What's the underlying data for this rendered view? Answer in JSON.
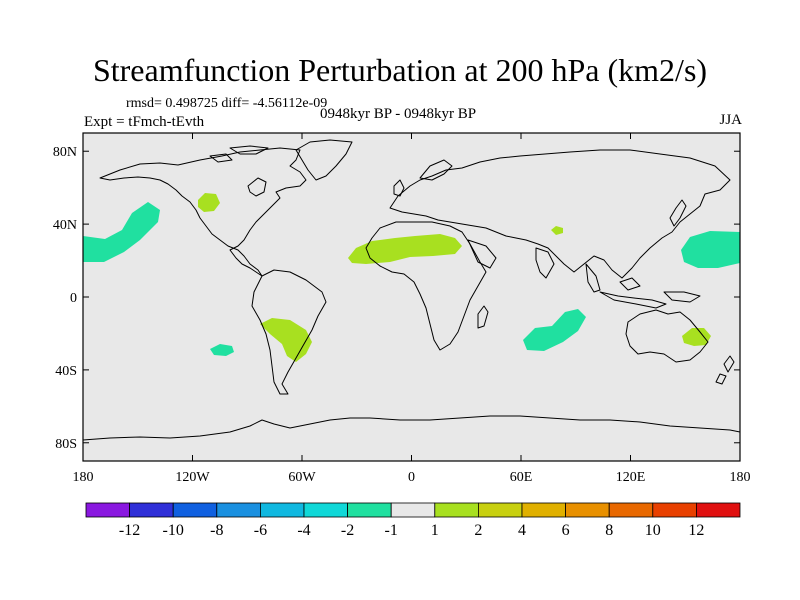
{
  "title": "Streamfunction Perturbation at 200 hPa (km2/s)",
  "stats_line": "rmsd= 0.498725 diff= -4.56112e-09",
  "experiment": "Expt = tFmch-tEvth",
  "period": "0948kyr BP - 0948kyr BP",
  "season": "JJA",
  "axes": {
    "lat_ticks": [
      {
        "value": 80,
        "label": "80N"
      },
      {
        "value": 40,
        "label": "40N"
      },
      {
        "value": 0,
        "label": "0"
      },
      {
        "value": -40,
        "label": "40S"
      },
      {
        "value": -80,
        "label": "80S"
      }
    ],
    "lon_ticks": [
      {
        "value": -180,
        "label": "180"
      },
      {
        "value": -120,
        "label": "120W"
      },
      {
        "value": -60,
        "label": "60W"
      },
      {
        "value": 0,
        "label": "0"
      },
      {
        "value": 60,
        "label": "60E"
      },
      {
        "value": 120,
        "label": "120E"
      },
      {
        "value": 180,
        "label": "180"
      }
    ],
    "lon_range": [
      -180,
      180
    ],
    "lat_range": [
      -90,
      90
    ]
  },
  "colors": {
    "background_field": "#e8e8e8",
    "coastline": "#000000"
  },
  "colorbar": {
    "labels": [
      "-12",
      "-10",
      "-8",
      "-6",
      "-4",
      "-2",
      "-1",
      "1",
      "2",
      "4",
      "6",
      "8",
      "10",
      "12"
    ],
    "colors": [
      "#8a18e0",
      "#3030d8",
      "#1060e0",
      "#1a90e0",
      "#10b8e0",
      "#10d8d8",
      "#20e0a0",
      "#e8e8e8",
      "#a8e020",
      "#c8d010",
      "#e0b000",
      "#e89000",
      "#e86800",
      "#e84000",
      "#e01010"
    ]
  },
  "chart_data": {
    "type": "filled-contour-map",
    "variable": "Streamfunction Perturbation at 200 hPa (km2/s)",
    "season": "JJA",
    "anomalies": [
      {
        "region": "North Pacific (east of Hawaii)",
        "lon": -168,
        "lat": 30,
        "level": "-2 to -1",
        "color": "#20e0a0"
      },
      {
        "region": "Western United States",
        "lon": -112,
        "lat": 50,
        "level": "1 to 2",
        "color": "#a8e020"
      },
      {
        "region": "Sahara / North Africa",
        "lon": -5,
        "lat": 26,
        "level": "1 to 2",
        "color": "#a8e020"
      },
      {
        "region": "Central Asia",
        "lon": 80,
        "lat": 37,
        "level": "1 to 2",
        "color": "#a8e020"
      },
      {
        "region": "Northwest Pacific",
        "lon": 165,
        "lat": 34,
        "level": "-2 to -1",
        "color": "#20e0a0"
      },
      {
        "region": "South America (subtropics)",
        "lon": -60,
        "lat": -25,
        "level": "1 to 2",
        "color": "#a8e020"
      },
      {
        "region": "Southeast Pacific",
        "lon": -110,
        "lat": -30,
        "level": "-2 to -1",
        "color": "#20e0a0"
      },
      {
        "region": "South Indian Ocean",
        "lon": 72,
        "lat": -28,
        "level": "-2 to -1",
        "color": "#20e0a0"
      },
      {
        "region": "Eastern Australia",
        "lon": 150,
        "lat": -28,
        "level": "1 to 2",
        "color": "#a8e020"
      }
    ]
  }
}
